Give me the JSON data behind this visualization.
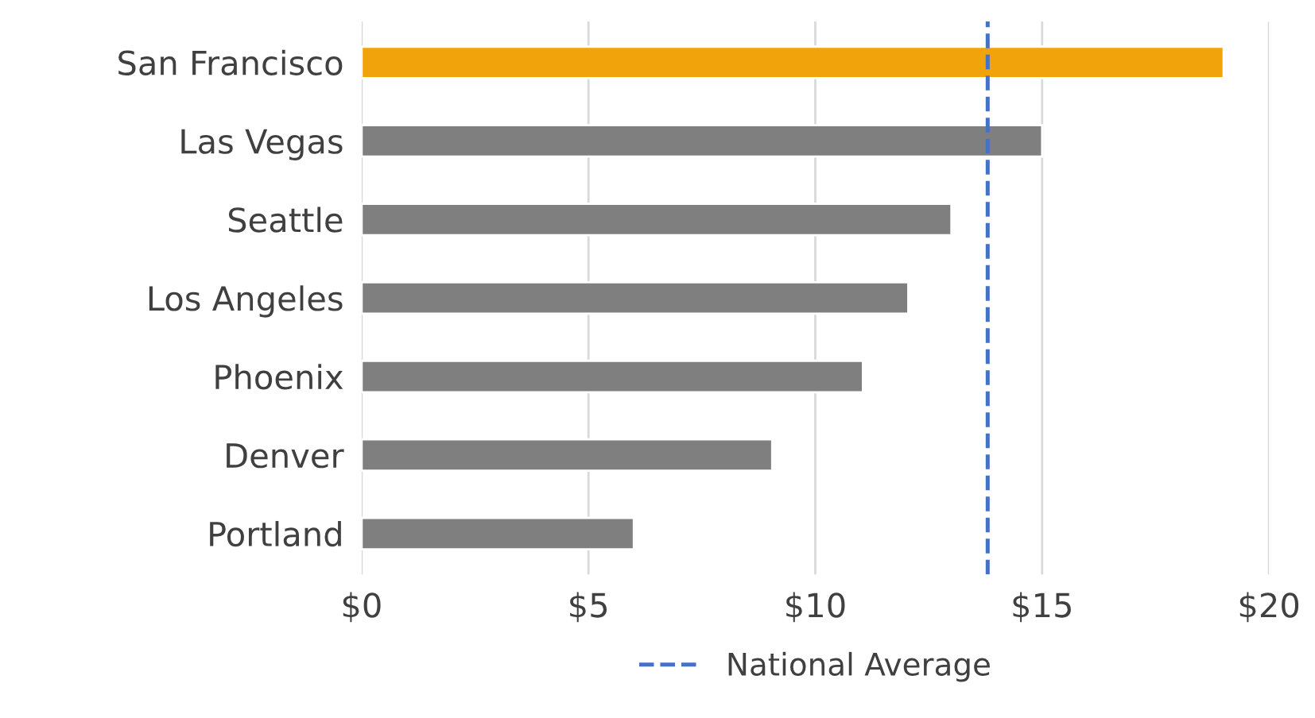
{
  "chart_data": {
    "type": "bar",
    "orientation": "horizontal",
    "categories": [
      "San Francisco",
      "Las Vegas",
      "Seattle",
      "Los Angeles",
      "Phoenix",
      "Denver",
      "Portland"
    ],
    "values": [
      19,
      15,
      13,
      12.05,
      11.05,
      9.05,
      6
    ],
    "colors": [
      "#f0a30a",
      "#7f7f7f",
      "#7f7f7f",
      "#7f7f7f",
      "#7f7f7f",
      "#7f7f7f",
      "#7f7f7f"
    ],
    "xlim": [
      0,
      20
    ],
    "xticks": [
      {
        "value": 0,
        "label": "$0"
      },
      {
        "value": 5,
        "label": "$5"
      },
      {
        "value": 10,
        "label": "$10"
      },
      {
        "value": 15,
        "label": "$15"
      },
      {
        "value": 20,
        "label": "$20"
      }
    ],
    "grid": "x",
    "legend": "bottom",
    "ref_lines": [
      {
        "axis": "x",
        "value": 13.8,
        "label": "National Average",
        "color": "#4472c4",
        "line_style": "dashed"
      }
    ]
  }
}
